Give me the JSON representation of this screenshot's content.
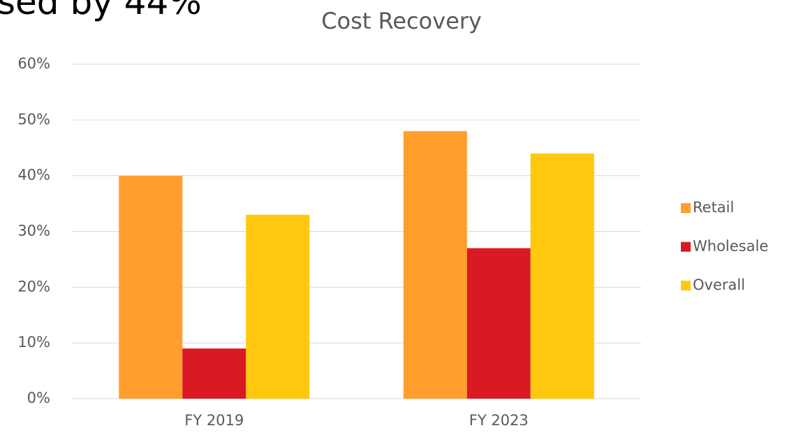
{
  "chart_data": {
    "type": "bar",
    "title": "Cost Recovery",
    "annotation": "sed by 44%",
    "categories": [
      "FY 2019",
      "FY 2023"
    ],
    "series": [
      {
        "name": "Retail",
        "color": "#ff9e2c",
        "values": [
          40,
          48
        ]
      },
      {
        "name": "Wholesale",
        "color": "#d91a24",
        "values": [
          9,
          27
        ]
      },
      {
        "name": "Overall",
        "color": "#ffc80f",
        "values": [
          33,
          44
        ]
      }
    ],
    "ylim": [
      0,
      60
    ],
    "yticks": [
      {
        "value": 0,
        "label": "0%"
      },
      {
        "value": 10,
        "label": "10%"
      },
      {
        "value": 20,
        "label": "20%"
      },
      {
        "value": 30,
        "label": "30%"
      },
      {
        "value": 40,
        "label": "40%"
      },
      {
        "value": 50,
        "label": "50%"
      },
      {
        "value": 60,
        "label": "60%"
      }
    ],
    "grid": true,
    "legend": "right"
  }
}
